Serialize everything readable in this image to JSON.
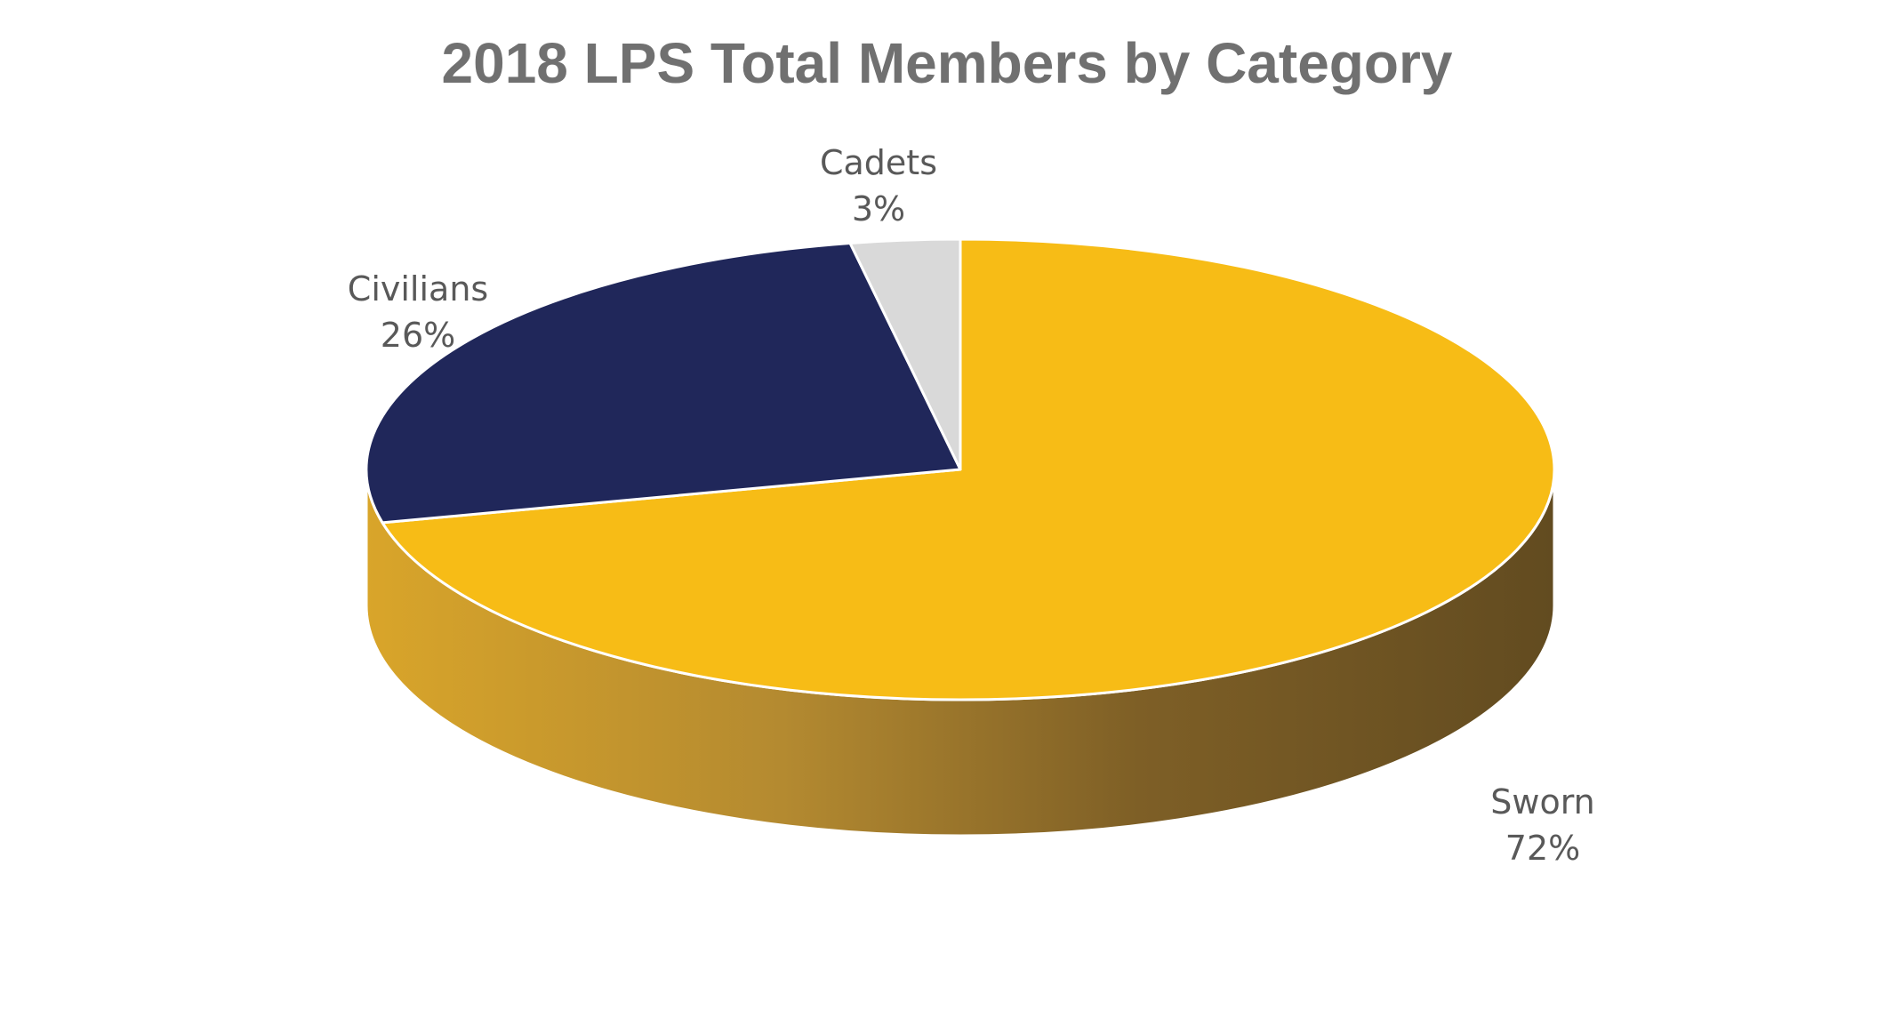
{
  "chart_data": {
    "type": "pie",
    "title": "2018 LPS Total Members by Category",
    "slices": [
      {
        "name": "Sworn",
        "value": 72,
        "label": "72%",
        "color": "#F7BC16"
      },
      {
        "name": "Civilians",
        "value": 26,
        "label": "26%",
        "color": "#20275A"
      },
      {
        "name": "Cadets",
        "value": 3,
        "label": "3%",
        "color": "#D9D9D9"
      }
    ],
    "style": "3d",
    "start": "12 o'clock",
    "direction": "clockwise",
    "legend": "none",
    "data_labels": "category name and percentage"
  }
}
